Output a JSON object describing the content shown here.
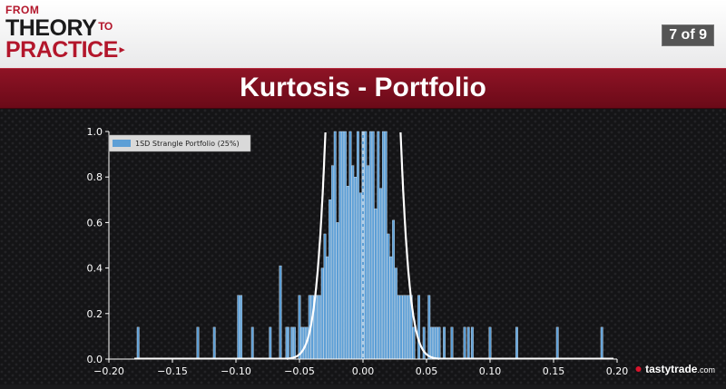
{
  "header": {
    "logo": {
      "line1": "FROM",
      "line2": "THEORY",
      "to": "TO",
      "line3": "PRACTICE",
      "arrow": "▸"
    },
    "pager": "7 of 9"
  },
  "banner": {
    "title": "Kurtosis - Portfolio"
  },
  "brand": {
    "name": "tastytrade",
    "suffix": ".com",
    "icon": "cherry-icon"
  },
  "colors": {
    "bar": "#5d9fd6",
    "bar_edge": "#d6e8f7",
    "curve": "#ffffff",
    "accent": "#8e1325",
    "axis": "#ffffff"
  },
  "chart_data": {
    "type": "bar",
    "legend": {
      "label": "1SD Strangle Portfolio (25%)",
      "placement": "top-left"
    },
    "xlim": [
      -0.2,
      0.2
    ],
    "ylim": [
      0.0,
      1.0
    ],
    "xticks": [
      -0.2,
      -0.15,
      -0.1,
      -0.05,
      0.0,
      0.05,
      0.1,
      0.15,
      0.2
    ],
    "xtick_labels": [
      "−0.20",
      "−0.15",
      "−0.10",
      "−0.05",
      "0.00",
      "0.05",
      "0.10",
      "0.15",
      "0.20"
    ],
    "yticks": [
      0.0,
      0.2,
      0.4,
      0.6,
      0.8,
      1.0
    ],
    "ytick_labels": [
      "0.0",
      "0.2",
      "0.4",
      "0.6",
      "0.8",
      "1.0"
    ],
    "bin_width": 0.00176,
    "bins_x": [
      -0.177,
      -0.13,
      -0.117,
      -0.098,
      -0.096,
      -0.087,
      -0.073,
      -0.065,
      -0.06,
      -0.059,
      -0.056,
      -0.054,
      -0.05,
      -0.048,
      -0.046,
      -0.044,
      -0.042,
      -0.04,
      -0.038,
      -0.037,
      -0.035,
      -0.034,
      -0.032,
      -0.03,
      -0.028,
      -0.026,
      -0.024,
      -0.022,
      -0.02,
      -0.018,
      -0.016,
      -0.014,
      -0.012,
      -0.01,
      -0.008,
      -0.006,
      -0.004,
      -0.002,
      0.0,
      0.002,
      0.004,
      0.006,
      0.008,
      0.01,
      0.012,
      0.014,
      0.016,
      0.018,
      0.02,
      0.022,
      0.024,
      0.026,
      0.028,
      0.03,
      0.032,
      0.034,
      0.036,
      0.038,
      0.04,
      0.044,
      0.048,
      0.052,
      0.054,
      0.056,
      0.058,
      0.06,
      0.064,
      0.07,
      0.08,
      0.083,
      0.086,
      0.1,
      0.121,
      0.153,
      0.188
    ],
    "bins_y": [
      0.14,
      0.14,
      0.14,
      0.28,
      0.28,
      0.14,
      0.14,
      0.41,
      0.14,
      0.14,
      0.14,
      0.14,
      0.28,
      0.14,
      0.14,
      0.14,
      0.28,
      0.28,
      0.28,
      0.28,
      0.28,
      0.28,
      0.4,
      0.55,
      0.45,
      0.7,
      0.85,
      1.0,
      0.6,
      1.0,
      1.0,
      1.0,
      0.76,
      1.0,
      0.85,
      0.8,
      1.0,
      0.73,
      1.0,
      1.0,
      0.85,
      1.0,
      1.0,
      0.66,
      1.0,
      0.75,
      1.0,
      1.0,
      0.55,
      0.45,
      0.61,
      0.4,
      0.28,
      0.28,
      0.28,
      0.28,
      0.28,
      0.28,
      0.14,
      0.28,
      0.14,
      0.28,
      0.14,
      0.14,
      0.14,
      0.14,
      0.14,
      0.14,
      0.14,
      0.14,
      0.14,
      0.14,
      0.14,
      0.14,
      0.14
    ],
    "normal_curve": {
      "mean": 0.0,
      "std": 0.0145,
      "scale": 1.0,
      "label": ""
    },
    "mean_line_x": 0.0
  }
}
